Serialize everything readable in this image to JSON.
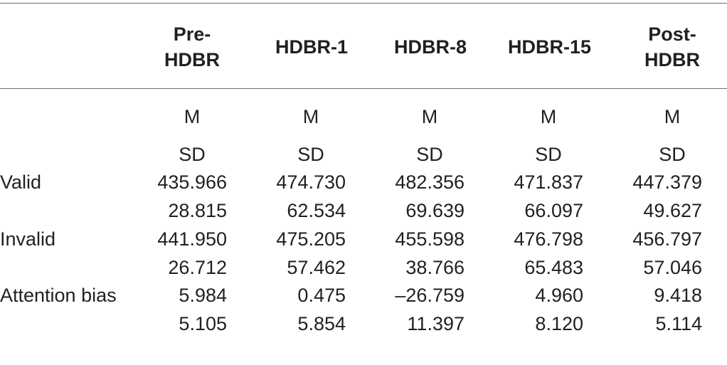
{
  "columns": [
    {
      "line1": "Pre-",
      "line2": "HDBR"
    },
    {
      "line1": "HDBR-1",
      "line2": ""
    },
    {
      "line1": "HDBR-8",
      "line2": ""
    },
    {
      "line1": "HDBR-15",
      "line2": ""
    },
    {
      "line1": "Post-",
      "line2": "HDBR"
    }
  ],
  "stat_labels": {
    "mean": "M",
    "sd": "SD"
  },
  "rows": [
    {
      "label": "Valid",
      "mean": [
        "435.966",
        "474.730",
        "482.356",
        "471.837",
        "447.379"
      ],
      "sd": [
        "28.815",
        "62.534",
        "69.639",
        "66.097",
        "49.627"
      ]
    },
    {
      "label": "Invalid",
      "mean": [
        "441.950",
        "475.205",
        "455.598",
        "476.798",
        "456.797"
      ],
      "sd": [
        "26.712",
        "57.462",
        "38.766",
        "65.483",
        "57.046"
      ]
    },
    {
      "label": "Attention bias",
      "mean": [
        "5.984",
        "0.475",
        "–26.759",
        "4.960",
        "9.418"
      ],
      "sd": [
        "5.105",
        "5.854",
        "11.397",
        "8.120",
        "5.114"
      ]
    }
  ]
}
